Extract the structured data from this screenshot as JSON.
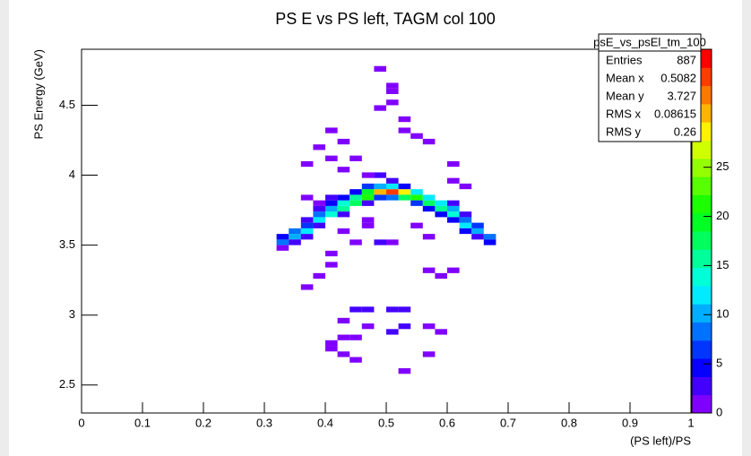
{
  "chart_data": {
    "type": "heatmap",
    "title": "PS E vs PS left, TAGM col 100",
    "x_label": "(PS left)/PS",
    "y_label": "PS Energy (GeV)",
    "xlim": [
      0,
      1
    ],
    "xticks": [
      0,
      0.1,
      0.2,
      0.3,
      0.4,
      0.5,
      0.6,
      0.7,
      0.8,
      0.9,
      1
    ],
    "ylim": [
      2.3,
      4.9
    ],
    "yticks": [
      2.5,
      3,
      3.5,
      4,
      4.5
    ],
    "zlim": [
      0,
      37
    ],
    "zticks": [
      0,
      5,
      10,
      15,
      20,
      25
    ],
    "grid": false,
    "cells": {
      "x": [
        0.32,
        0.32,
        0.32,
        0.34,
        0.34,
        0.34,
        0.36,
        0.36,
        0.36,
        0.36,
        0.38,
        0.38,
        0.38,
        0.38,
        0.4,
        0.4,
        0.4,
        0.4,
        0.42,
        0.42,
        0.42,
        0.42,
        0.44,
        0.44,
        0.44,
        0.46,
        0.46,
        0.46,
        0.46,
        0.48,
        0.48,
        0.48,
        0.5,
        0.5,
        0.5,
        0.5,
        0.52,
        0.52,
        0.52,
        0.54,
        0.54,
        0.54,
        0.56,
        0.56,
        0.56,
        0.58,
        0.58,
        0.58,
        0.6,
        0.6,
        0.6,
        0.6,
        0.62,
        0.62,
        0.62,
        0.62,
        0.64,
        0.64,
        0.64,
        0.66,
        0.66,
        0.48,
        0.5,
        0.5,
        0.5,
        0.4,
        0.42,
        0.38,
        0.4,
        0.44,
        0.36,
        0.42,
        0.46,
        0.48,
        0.52,
        0.54,
        0.56,
        0.52,
        0.48,
        0.6,
        0.6,
        0.62,
        0.4,
        0.4,
        0.38,
        0.36,
        0.44,
        0.48,
        0.5,
        0.42,
        0.46,
        0.56,
        0.58,
        0.6,
        0.54,
        0.56,
        0.44,
        0.46,
        0.5,
        0.52,
        0.42,
        0.46,
        0.5,
        0.52,
        0.56,
        0.58,
        0.44,
        0.42,
        0.4,
        0.42,
        0.44,
        0.56,
        0.4,
        0.52,
        0.36,
        0.38,
        0.46
      ],
      "y": [
        3.5,
        3.54,
        3.46,
        3.54,
        3.58,
        3.5,
        3.58,
        3.62,
        3.54,
        3.66,
        3.66,
        3.7,
        3.62,
        3.74,
        3.7,
        3.74,
        3.78,
        3.82,
        3.74,
        3.78,
        3.82,
        3.7,
        3.78,
        3.82,
        3.86,
        3.82,
        3.86,
        3.9,
        3.78,
        3.86,
        3.9,
        3.82,
        3.86,
        3.9,
        3.82,
        3.94,
        3.86,
        3.82,
        3.9,
        3.82,
        3.86,
        3.78,
        3.78,
        3.82,
        3.74,
        3.74,
        3.78,
        3.7,
        3.7,
        3.74,
        3.66,
        3.78,
        3.62,
        3.66,
        3.58,
        3.7,
        3.58,
        3.62,
        3.54,
        3.54,
        3.5,
        4.74,
        4.62,
        4.58,
        4.5,
        4.3,
        4.22,
        4.18,
        4.1,
        4.1,
        4.06,
        4.02,
        3.98,
        3.98,
        4.3,
        4.26,
        4.22,
        4.38,
        4.46,
        4.06,
        3.94,
        3.9,
        3.42,
        3.34,
        3.26,
        3.18,
        3.5,
        3.5,
        3.5,
        3.58,
        3.62,
        3.3,
        3.26,
        3.3,
        3.62,
        3.54,
        3.02,
        3.02,
        3.02,
        3.02,
        2.94,
        2.9,
        2.86,
        2.9,
        2.9,
        2.86,
        2.82,
        2.82,
        2.74,
        2.7,
        2.66,
        2.7,
        2.78,
        2.58,
        3.82,
        3.78,
        3.66
      ],
      "values": [
        8,
        4,
        1,
        10,
        8,
        3,
        12,
        6,
        3,
        3,
        12,
        8,
        3,
        3,
        14,
        10,
        4,
        2,
        16,
        14,
        5,
        2,
        18,
        15,
        5,
        22,
        20,
        6,
        3,
        30,
        10,
        6,
        35,
        12,
        8,
        3,
        28,
        18,
        5,
        22,
        12,
        6,
        18,
        12,
        4,
        16,
        12,
        4,
        14,
        10,
        5,
        3,
        12,
        8,
        4,
        2,
        10,
        6,
        3,
        8,
        4,
        1,
        1,
        1,
        1,
        1,
        1,
        1,
        1,
        1,
        1,
        1,
        1,
        2,
        1,
        1,
        1,
        1,
        1,
        1,
        1,
        1,
        1,
        1,
        1,
        1,
        1,
        2,
        1,
        1,
        1,
        1,
        1,
        1,
        1,
        1,
        2,
        2,
        2,
        2,
        1,
        1,
        2,
        2,
        1,
        1,
        1,
        1,
        1,
        1,
        1,
        1,
        1,
        1,
        1,
        1,
        1
      ]
    }
  },
  "stats_box": {
    "title": "psE_vs_psEl_tm_100",
    "rows": [
      {
        "label": "Entries",
        "value": 887
      },
      {
        "label": "Mean x",
        "value": 0.5082
      },
      {
        "label": "Mean y",
        "value": 3.727
      },
      {
        "label": "RMS x",
        "value": 0.08615
      },
      {
        "label": "RMS y",
        "value": 0.26
      }
    ]
  }
}
